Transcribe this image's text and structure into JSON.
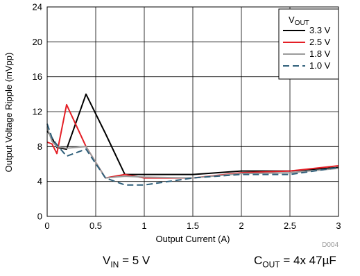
{
  "chart_data": {
    "type": "line",
    "xlabel": "Output Current (A)",
    "ylabel": "Output Voltage Ripple (mVpp)",
    "xlim": [
      0,
      3
    ],
    "ylim": [
      0,
      24
    ],
    "xticks": [
      "0",
      "0.5",
      "1",
      "1.5",
      "2",
      "2.5",
      "3"
    ],
    "yticks": [
      "0",
      "4",
      "8",
      "12",
      "16",
      "20",
      "24"
    ],
    "grid": true,
    "legend_position": "top-right",
    "legend": {
      "title_main": "V",
      "title_sub": "OUT"
    },
    "figure_id": "D004",
    "series": [
      {
        "name": "3.3 V",
        "color": "#000000",
        "dash": "solid",
        "x": [
          0,
          0.05,
          0.1,
          0.2,
          0.4,
          0.6,
          0.8,
          1.0,
          1.5,
          2.0,
          2.5,
          3.0
        ],
        "y": [
          9.8,
          9.0,
          7.9,
          7.7,
          14.0,
          9.5,
          4.8,
          4.8,
          4.8,
          5.2,
          5.2,
          5.6
        ]
      },
      {
        "name": "2.5 V",
        "color": "#e41f26",
        "dash": "solid",
        "x": [
          0,
          0.05,
          0.1,
          0.2,
          0.4,
          0.6,
          0.8,
          1.0,
          1.5,
          2.0,
          2.5,
          3.0
        ],
        "y": [
          8.5,
          8.3,
          7.2,
          12.8,
          8.0,
          4.4,
          4.8,
          4.4,
          4.4,
          5.0,
          5.2,
          5.8
        ]
      },
      {
        "name": "1.8 V",
        "color": "#9b9b9b",
        "dash": "solid",
        "x": [
          0,
          0.05,
          0.1,
          0.2,
          0.4,
          0.6,
          0.8,
          1.0,
          1.5,
          2.0,
          2.5,
          3.0
        ],
        "y": [
          10.2,
          8.6,
          8.0,
          7.8,
          8.0,
          4.4,
          4.6,
          4.5,
          4.4,
          4.9,
          5.0,
          5.5
        ]
      },
      {
        "name": "1.0 V",
        "color": "#2f5f7a",
        "dash": "dashed",
        "x": [
          0,
          0.05,
          0.1,
          0.2,
          0.4,
          0.6,
          0.8,
          1.0,
          1.5,
          2.0,
          2.5,
          3.0
        ],
        "y": [
          10.6,
          9.0,
          8.2,
          6.9,
          7.7,
          4.4,
          3.6,
          3.6,
          4.4,
          4.8,
          4.8,
          5.6
        ]
      }
    ]
  },
  "conditions": {
    "vin": {
      "main": "V",
      "sub": "IN",
      "rest": " = 5 V"
    },
    "cout": {
      "main": "C",
      "sub": "OUT",
      "rest": " = 4x 47µF"
    }
  }
}
